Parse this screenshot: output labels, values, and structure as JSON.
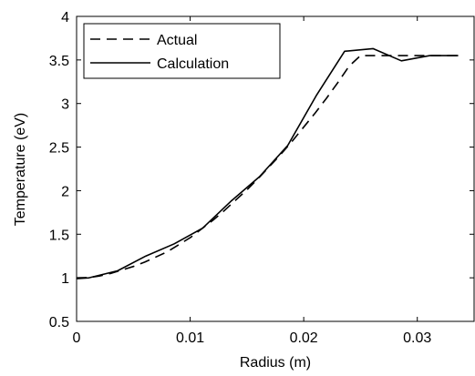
{
  "chart_data": {
    "type": "line",
    "title": "",
    "xlabel": "Radius (m)",
    "ylabel": "Temperature (eV)",
    "xlim": [
      0,
      0.035
    ],
    "ylim": [
      0.5,
      4
    ],
    "xticks": [
      {
        "value": 0,
        "label": "0"
      },
      {
        "value": 0.01,
        "label": "0.01"
      },
      {
        "value": 0.02,
        "label": "0.02"
      },
      {
        "value": 0.03,
        "label": "0.03"
      }
    ],
    "yticks": [
      {
        "value": 0.5,
        "label": "0.5"
      },
      {
        "value": 1,
        "label": "1"
      },
      {
        "value": 1.5,
        "label": "1.5"
      },
      {
        "value": 2,
        "label": "2"
      },
      {
        "value": 2.5,
        "label": "2.5"
      },
      {
        "value": 3,
        "label": "3"
      },
      {
        "value": 3.5,
        "label": "3.5"
      },
      {
        "value": 4,
        "label": "4"
      }
    ],
    "grid": false,
    "legend_position": "top-left",
    "series": [
      {
        "name": "Actual",
        "style": "dashed",
        "color": "#000000",
        "x": [
          0,
          0.001,
          0.002,
          0.003,
          0.004,
          0.005,
          0.006,
          0.007,
          0.008,
          0.009,
          0.01,
          0.011,
          0.012,
          0.013,
          0.014,
          0.015,
          0.016,
          0.017,
          0.018,
          0.019,
          0.02,
          0.021,
          0.022,
          0.023,
          0.024,
          0.025,
          0.026,
          0.027,
          0.028,
          0.029,
          0.03,
          0.031,
          0.032,
          0.033,
          0.034
        ],
        "y": [
          1.0,
          1.002,
          1.02,
          1.05,
          1.09,
          1.13,
          1.18,
          1.24,
          1.3,
          1.38,
          1.46,
          1.56,
          1.66,
          1.77,
          1.89,
          2.01,
          2.14,
          2.28,
          2.42,
          2.57,
          2.73,
          2.89,
          3.06,
          3.24,
          3.43,
          3.55,
          3.55,
          3.55,
          3.55,
          3.55,
          3.55,
          3.55,
          3.55,
          3.55,
          3.55
        ]
      },
      {
        "name": "Calculation",
        "style": "solid",
        "color": "#000000",
        "x": [
          0,
          0.0011,
          0.0036,
          0.0061,
          0.0086,
          0.0111,
          0.0136,
          0.0161,
          0.0186,
          0.0211,
          0.0236,
          0.0261,
          0.0286,
          0.0311,
          0.0336
        ],
        "y": [
          0.99,
          1.0,
          1.08,
          1.25,
          1.39,
          1.57,
          1.88,
          2.16,
          2.52,
          3.09,
          3.6,
          3.63,
          3.49,
          3.55,
          3.55
        ]
      }
    ]
  }
}
